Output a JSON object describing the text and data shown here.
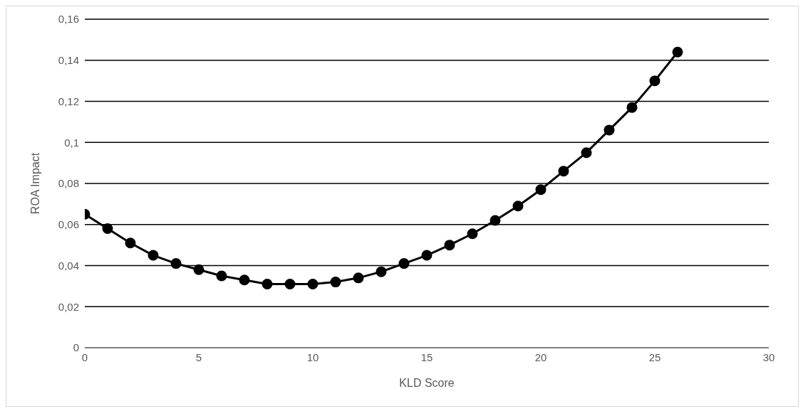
{
  "chart_data": {
    "type": "line",
    "xlabel": "KLD Score",
    "ylabel": "ROA Impact",
    "x": [
      0,
      1,
      2,
      3,
      4,
      5,
      6,
      7,
      8,
      9,
      10,
      11,
      12,
      13,
      14,
      15,
      16,
      17,
      18,
      19,
      20,
      21,
      22,
      23,
      24,
      25,
      26
    ],
    "series": [
      {
        "color": "#000000",
        "values": [
          0.065,
          0.058,
          0.051,
          0.045,
          0.041,
          0.038,
          0.035,
          0.033,
          0.031,
          0.031,
          0.031,
          0.032,
          0.034,
          0.037,
          0.041,
          0.045,
          0.05,
          0.0555,
          0.062,
          0.069,
          0.077,
          0.086,
          0.095,
          0.106,
          0.117,
          0.13,
          0.144
        ]
      }
    ],
    "xlim": [
      0,
      30
    ],
    "xticks": [
      0,
      5,
      10,
      15,
      20,
      25,
      30
    ],
    "ylim": [
      0,
      0.16
    ],
    "yticks": [
      0,
      {
        "value": 0.02,
        "label": "0,02"
      },
      {
        "value": 0.04,
        "label": "0,04"
      },
      {
        "value": 0.06,
        "label": "0,06"
      },
      {
        "value": 0.08,
        "label": "0,08"
      },
      {
        "value": 0.1,
        "label": "0,1"
      },
      {
        "value": 0.12,
        "label": "0,12"
      },
      {
        "value": 0.14,
        "label": "0,14"
      },
      {
        "value": 0.16,
        "label": "0,16"
      }
    ],
    "grid": "y",
    "marker": "circle",
    "line_style": "solid"
  }
}
